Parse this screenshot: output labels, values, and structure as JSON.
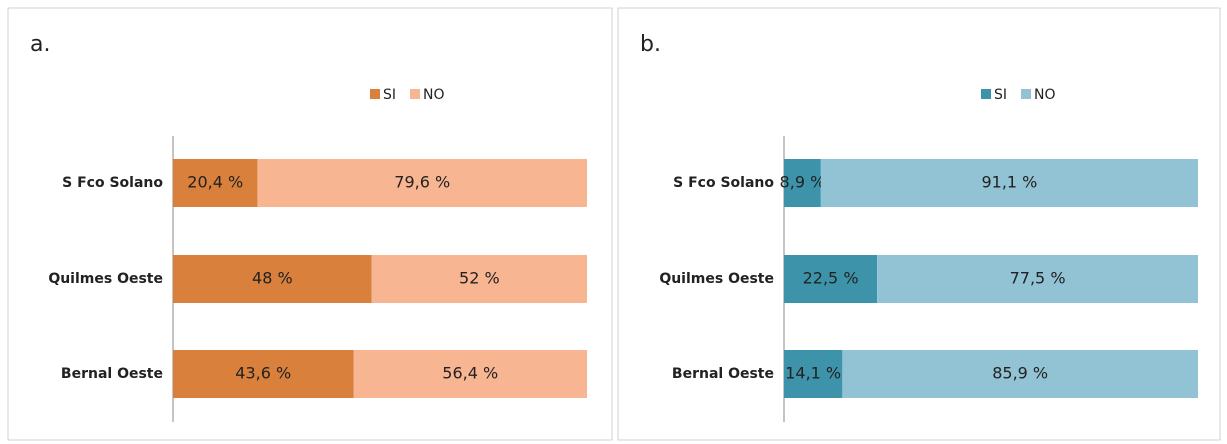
{
  "chart_data": [
    {
      "type": "stacked-barh",
      "title": "a.",
      "categories": [
        "S Fco Solano",
        "Quilmes Oeste",
        "Bernal Oeste"
      ],
      "xlim": [
        0,
        100
      ],
      "legend": "top",
      "series": [
        {
          "name": "SI",
          "color": "#d9813c",
          "values": [
            20.4,
            48,
            43.6
          ],
          "value_labels": [
            "20,4 %",
            "48 %",
            "43,6 %"
          ]
        },
        {
          "name": "NO",
          "color": "#f8b592",
          "values": [
            79.6,
            52,
            56.4
          ],
          "value_labels": [
            "79,6 %",
            "52 %",
            "56,4 %"
          ]
        }
      ]
    },
    {
      "type": "stacked-barh",
      "title": "b.",
      "categories": [
        "S Fco Solano",
        "Quilmes Oeste",
        "Bernal Oeste"
      ],
      "xlim": [
        0,
        100
      ],
      "legend": "top",
      "series": [
        {
          "name": "SI",
          "color": "#3d94aa",
          "values": [
            8.9,
            22.5,
            14.1
          ],
          "value_labels": [
            "8,9 %",
            "22,5 %",
            "14,1 %"
          ]
        },
        {
          "name": "NO",
          "color": "#92c3d5",
          "values": [
            91.1,
            77.5,
            85.9
          ],
          "value_labels": [
            "91,1 %",
            "77,5 %",
            "85,9 %"
          ]
        }
      ]
    }
  ]
}
